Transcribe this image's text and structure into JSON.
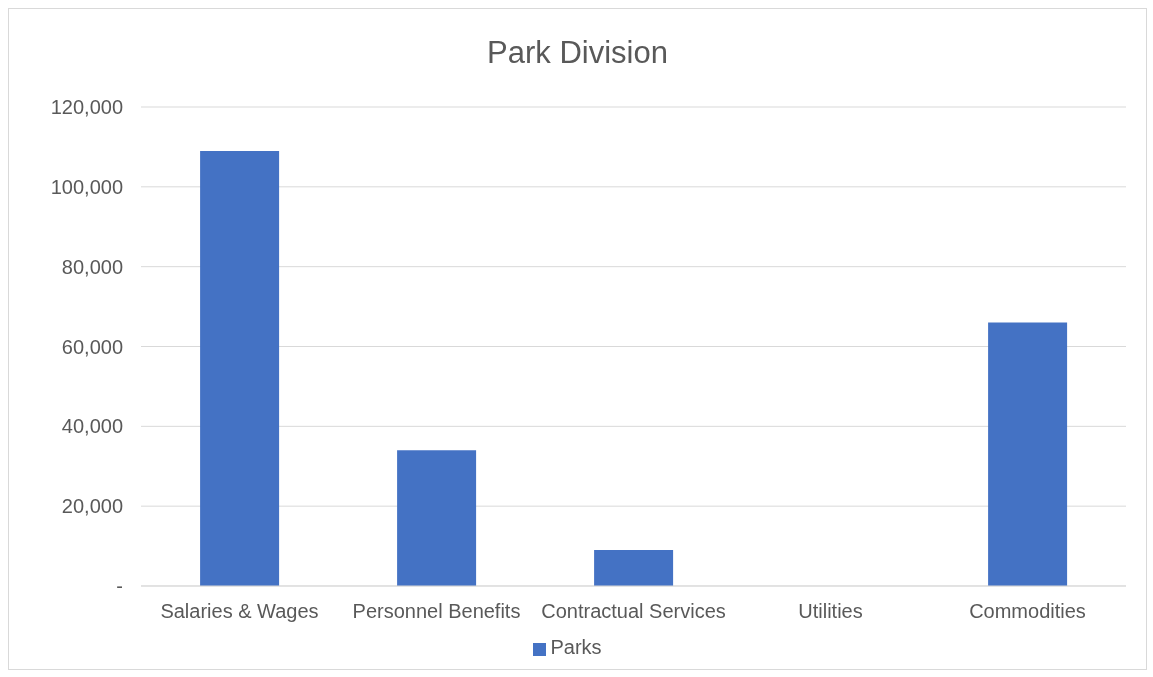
{
  "chart_data": {
    "type": "bar",
    "title": "Park Division",
    "categories": [
      "Salaries & Wages",
      "Personnel Benefits",
      "Contractual Services",
      "Utilities",
      "Commodities"
    ],
    "series": [
      {
        "name": "Parks",
        "color": "#4472c4",
        "values": [
          109000,
          34000,
          9000,
          0,
          66000
        ]
      }
    ],
    "ylim": [
      0,
      120000
    ],
    "yticks": [
      {
        "value": 0,
        "label": "-"
      },
      {
        "value": 20000,
        "label": "20,000"
      },
      {
        "value": 40000,
        "label": "40,000"
      },
      {
        "value": 60000,
        "label": "60,000"
      },
      {
        "value": 80000,
        "label": "80,000"
      },
      {
        "value": 100000,
        "label": "100,000"
      },
      {
        "value": 120000,
        "label": "120,000"
      }
    ],
    "grid": "y",
    "legend": "bottom"
  }
}
